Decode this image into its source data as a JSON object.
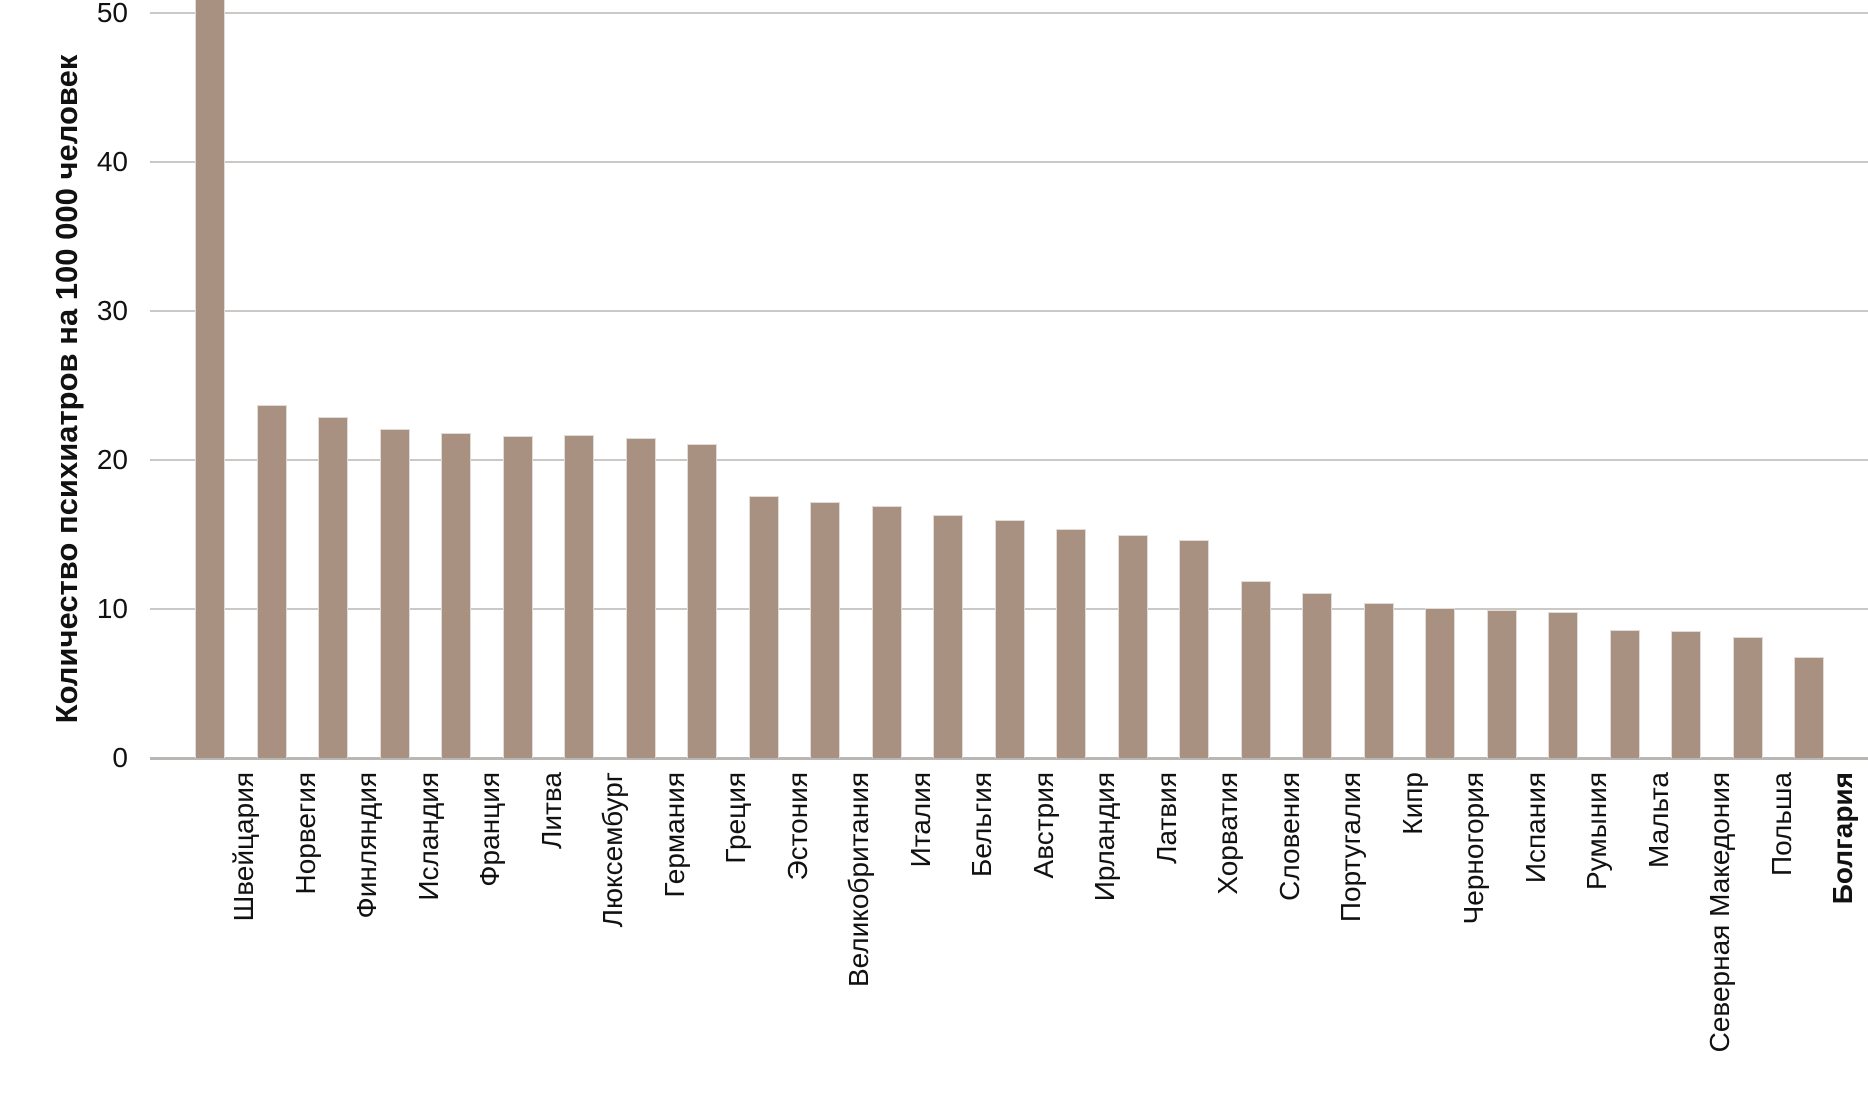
{
  "chart_data": {
    "type": "bar",
    "title": "",
    "xlabel": "",
    "ylabel": "Количество психиатров на 100 000 человек",
    "ylim": [
      0,
      50
    ],
    "yticks": [
      0,
      10,
      20,
      30,
      40,
      50
    ],
    "grid": "horizontal",
    "legend": "none",
    "categories": [
      "Швейцария",
      "Норвегия",
      "Финляндия",
      "Исландия",
      "Франция",
      "Литва",
      "Люксембург",
      "Германия",
      "Греция",
      "Эстония",
      "Великобритания",
      "Италия",
      "Бельгия",
      "Австрия",
      "Ирландия",
      "Латвия",
      "Хорватия",
      "Словения",
      "Португалия",
      "Кипр",
      "Черногория",
      "Испания",
      "Румыния",
      "Мальта",
      "Северная Македония",
      "Польша",
      "Болгария"
    ],
    "values": [
      51,
      23.7,
      22.9,
      22.1,
      21.8,
      21.6,
      21.7,
      21.5,
      21.1,
      17.6,
      17.2,
      16.9,
      16.3,
      16.0,
      15.4,
      15.0,
      14.6,
      11.9,
      11.1,
      10.4,
      10.1,
      9.9,
      9.8,
      8.6,
      8.5,
      8.1,
      6.8
    ],
    "highlighted_category": "Болгария",
    "clipped_category": "Швейцария",
    "colors": {
      "bar": "#a89181",
      "bar_border": "#e3dcd6",
      "gridline": "#cbc8c6",
      "axis_line": "#b9b6b3",
      "text": "#111111",
      "background": "#ffffff"
    }
  }
}
